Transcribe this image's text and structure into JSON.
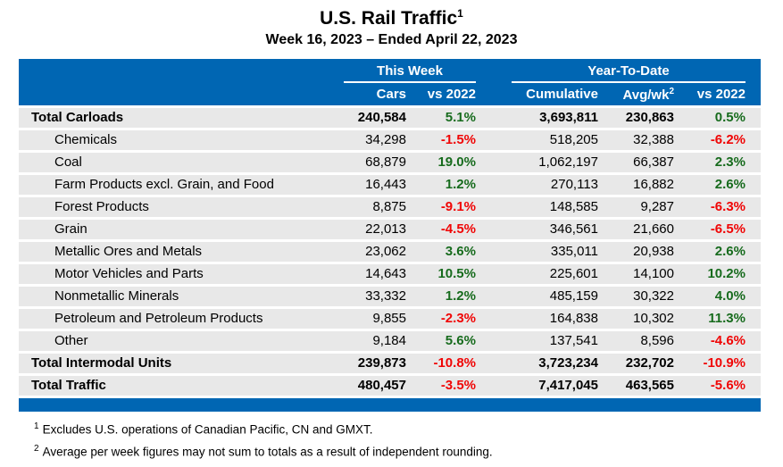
{
  "title": {
    "text": "U.S. Rail Traffic",
    "superscript": "1"
  },
  "subtitle": "Week 16, 2023 – Ended April 22, 2023",
  "colors": {
    "header_blue": "#0066b3",
    "row_gray": "#e8e8e8",
    "positive_green": "#176b1d",
    "negative_red": "#f00505"
  },
  "chart_data": {
    "type": "table",
    "title": "U.S. Rail Traffic",
    "subtitle": "Week 16, 2023 – Ended April 22, 2023",
    "column_groups": [
      {
        "label": "This Week",
        "columns": [
          "Cars",
          "vs 2022"
        ]
      },
      {
        "label": "Year-To-Date",
        "columns": [
          "Cumulative",
          "Avg/wk",
          "vs 2022"
        ]
      }
    ],
    "avgwk_superscript": "2",
    "rows": [
      {
        "name": "Total Carloads",
        "bold": true,
        "indent": false,
        "cars": "240,584",
        "week_vs_2022": "5.1%",
        "cumulative": "3,693,811",
        "avg_per_week": "230,863",
        "ytd_vs_2022": "0.5%"
      },
      {
        "name": "Chemicals",
        "bold": false,
        "indent": true,
        "cars": "34,298",
        "week_vs_2022": "-1.5%",
        "cumulative": "518,205",
        "avg_per_week": "32,388",
        "ytd_vs_2022": "-6.2%"
      },
      {
        "name": "Coal",
        "bold": false,
        "indent": true,
        "cars": "68,879",
        "week_vs_2022": "19.0%",
        "cumulative": "1,062,197",
        "avg_per_week": "66,387",
        "ytd_vs_2022": "2.3%"
      },
      {
        "name": "Farm Products excl. Grain, and Food",
        "bold": false,
        "indent": true,
        "cars": "16,443",
        "week_vs_2022": "1.2%",
        "cumulative": "270,113",
        "avg_per_week": "16,882",
        "ytd_vs_2022": "2.6%"
      },
      {
        "name": "Forest Products",
        "bold": false,
        "indent": true,
        "cars": "8,875",
        "week_vs_2022": "-9.1%",
        "cumulative": "148,585",
        "avg_per_week": "9,287",
        "ytd_vs_2022": "-6.3%"
      },
      {
        "name": "Grain",
        "bold": false,
        "indent": true,
        "cars": "22,013",
        "week_vs_2022": "-4.5%",
        "cumulative": "346,561",
        "avg_per_week": "21,660",
        "ytd_vs_2022": "-6.5%"
      },
      {
        "name": "Metallic Ores and Metals",
        "bold": false,
        "indent": true,
        "cars": "23,062",
        "week_vs_2022": "3.6%",
        "cumulative": "335,011",
        "avg_per_week": "20,938",
        "ytd_vs_2022": "2.6%"
      },
      {
        "name": "Motor Vehicles and Parts",
        "bold": false,
        "indent": true,
        "cars": "14,643",
        "week_vs_2022": "10.5%",
        "cumulative": "225,601",
        "avg_per_week": "14,100",
        "ytd_vs_2022": "10.2%"
      },
      {
        "name": "Nonmetallic Minerals",
        "bold": false,
        "indent": true,
        "cars": "33,332",
        "week_vs_2022": "1.2%",
        "cumulative": "485,159",
        "avg_per_week": "30,322",
        "ytd_vs_2022": "4.0%"
      },
      {
        "name": "Petroleum and Petroleum Products",
        "bold": false,
        "indent": true,
        "cars": "9,855",
        "week_vs_2022": "-2.3%",
        "cumulative": "164,838",
        "avg_per_week": "10,302",
        "ytd_vs_2022": "11.3%"
      },
      {
        "name": "Other",
        "bold": false,
        "indent": true,
        "cars": "9,184",
        "week_vs_2022": "5.6%",
        "cumulative": "137,541",
        "avg_per_week": "8,596",
        "ytd_vs_2022": "-4.6%"
      },
      {
        "name": "Total Intermodal Units",
        "bold": true,
        "indent": false,
        "cars": "239,873",
        "week_vs_2022": "-10.8%",
        "cumulative": "3,723,234",
        "avg_per_week": "232,702",
        "ytd_vs_2022": "-10.9%"
      },
      {
        "name": "Total Traffic",
        "bold": true,
        "indent": false,
        "cars": "480,457",
        "week_vs_2022": "-3.5%",
        "cumulative": "7,417,045",
        "avg_per_week": "463,565",
        "ytd_vs_2022": "-5.6%"
      }
    ]
  },
  "footnotes": [
    {
      "marker": "1",
      "text": "Excludes U.S. operations of Canadian Pacific, CN and GMXT."
    },
    {
      "marker": "2",
      "text": "Average per week figures may not sum to totals as a result of independent rounding."
    }
  ]
}
